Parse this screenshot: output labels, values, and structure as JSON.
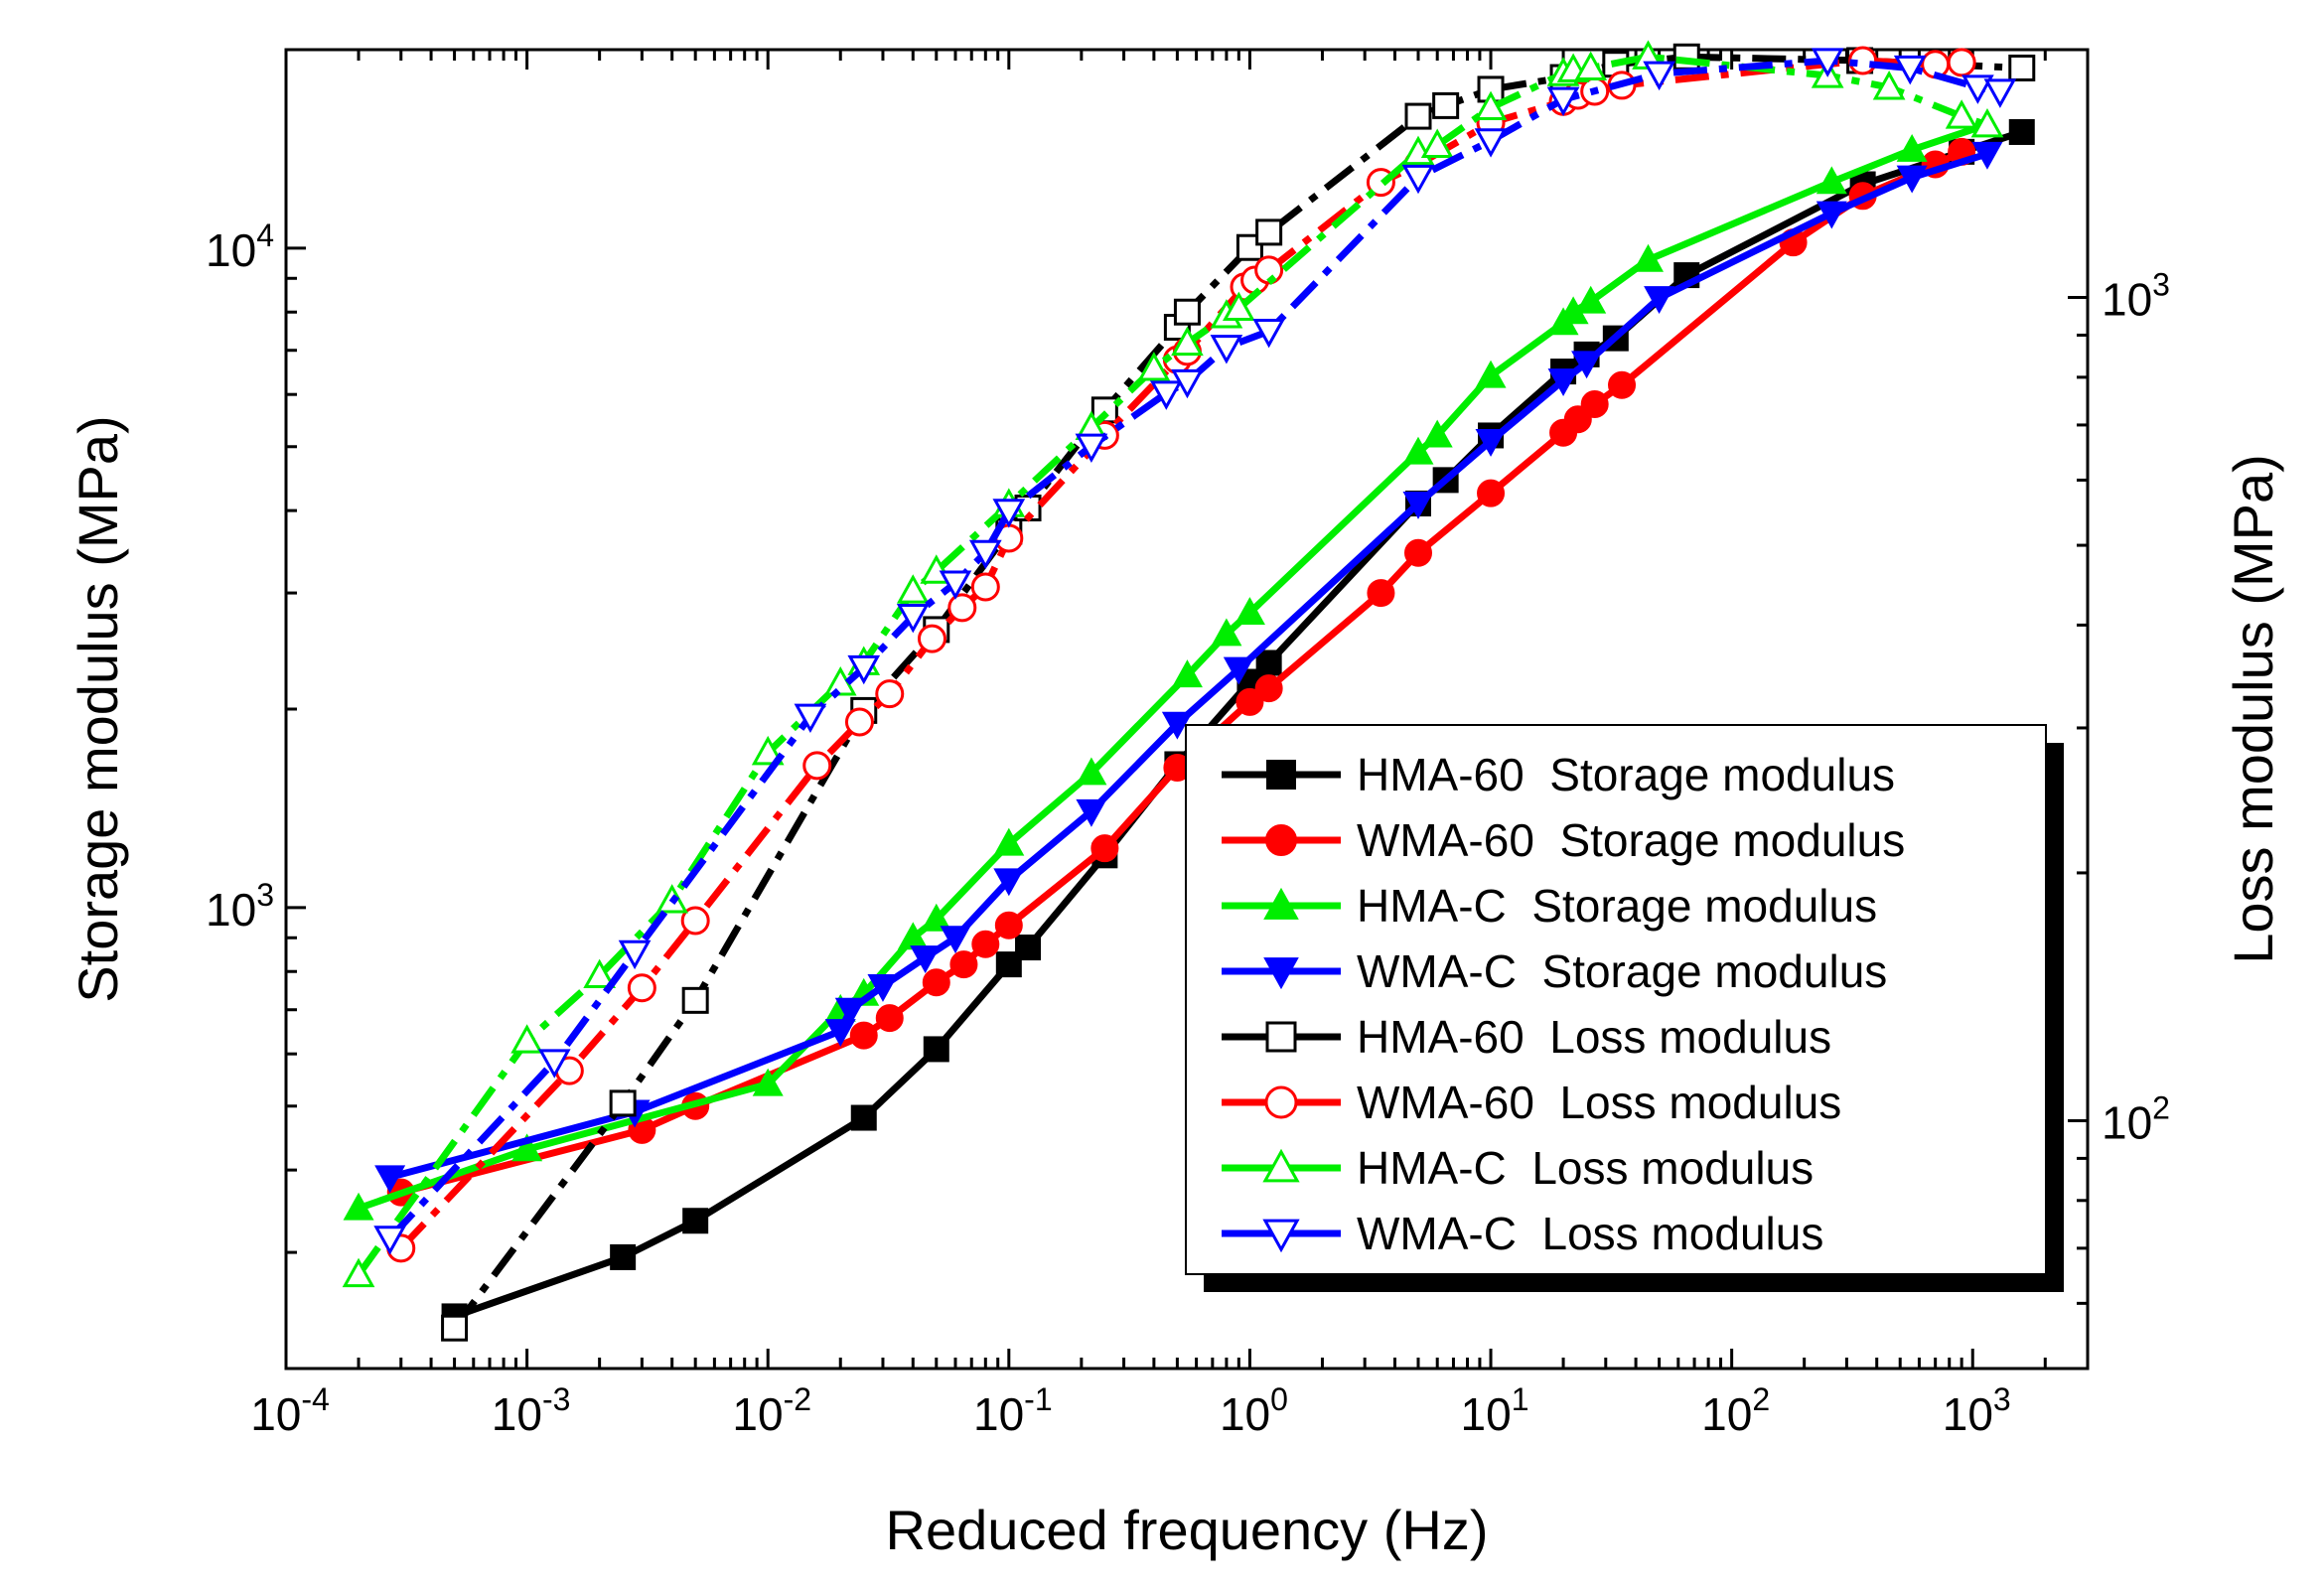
{
  "chart_data": {
    "type": "line",
    "x_scale": "log",
    "y_scale": "log",
    "xlabel": "Reduced frequency (Hz)",
    "ylabel": "Storage modulus (MPa)",
    "y2label": "Loss modulus (MPa)",
    "xlim": [
      0.0001,
      3000
    ],
    "ylim": [
      200,
      20000
    ],
    "y2lim": [
      50,
      2000
    ],
    "x_ticks": [
      {
        "value": 0.0001,
        "base": "10",
        "exp": "-4"
      },
      {
        "value": 0.001,
        "base": "10",
        "exp": "-3"
      },
      {
        "value": 0.01,
        "base": "10",
        "exp": "-2"
      },
      {
        "value": 0.1,
        "base": "10",
        "exp": "-1"
      },
      {
        "value": 1,
        "base": "10",
        "exp": "0"
      },
      {
        "value": 10,
        "base": "10",
        "exp": "1"
      },
      {
        "value": 100,
        "base": "10",
        "exp": "2"
      },
      {
        "value": 1000,
        "base": "10",
        "exp": "3"
      }
    ],
    "y_ticks": [
      {
        "value": 1000,
        "base": "10",
        "exp": "3"
      },
      {
        "value": 10000,
        "base": "10",
        "exp": "4"
      }
    ],
    "y2_ticks": [
      {
        "value": 100,
        "base": "10",
        "exp": "2"
      },
      {
        "value": 1000,
        "base": "10",
        "exp": "3"
      }
    ],
    "legend_position": "bottom-right",
    "series": [
      {
        "name": "HMA-60  Storage modulus",
        "axis": "left",
        "color": "#000000",
        "marker": "square",
        "filled": true,
        "dash": "solid",
        "points": [
          [
            0.0005,
            240
          ],
          [
            0.0025,
            295
          ],
          [
            0.005,
            335
          ],
          [
            0.025,
            480
          ],
          [
            0.05,
            610
          ],
          [
            0.1,
            820
          ],
          [
            0.12,
            870
          ],
          [
            0.25,
            1200
          ],
          [
            0.5,
            1650
          ],
          [
            1.0,
            2200
          ],
          [
            1.2,
            2350
          ],
          [
            5,
            4100
          ],
          [
            6.5,
            4450
          ],
          [
            10,
            5200
          ],
          [
            20,
            6500
          ],
          [
            25,
            6900
          ],
          [
            33,
            7300
          ],
          [
            65,
            9100
          ],
          [
            350,
            12500
          ],
          [
            900,
            14000
          ],
          [
            1600,
            15000
          ]
        ]
      },
      {
        "name": "WMA-60  Storage modulus",
        "axis": "left",
        "color": "#ff0000",
        "marker": "circle",
        "filled": true,
        "dash": "solid",
        "points": [
          [
            0.0003,
            370
          ],
          [
            0.003,
            460
          ],
          [
            0.005,
            500
          ],
          [
            0.025,
            640
          ],
          [
            0.032,
            680
          ],
          [
            0.05,
            770
          ],
          [
            0.065,
            820
          ],
          [
            0.08,
            880
          ],
          [
            0.1,
            940
          ],
          [
            0.25,
            1230
          ],
          [
            0.5,
            1630
          ],
          [
            1.0,
            2050
          ],
          [
            1.2,
            2150
          ],
          [
            3.5,
            3000
          ],
          [
            5,
            3450
          ],
          [
            10,
            4250
          ],
          [
            20,
            5250
          ],
          [
            23,
            5500
          ],
          [
            27,
            5800
          ],
          [
            35,
            6200
          ],
          [
            180,
            10200
          ],
          [
            350,
            12000
          ],
          [
            700,
            13400
          ],
          [
            900,
            14000
          ]
        ]
      },
      {
        "name": "HMA-C  Storage modulus",
        "axis": "left",
        "color": "#00ee00",
        "marker": "triangle-up",
        "filled": true,
        "dash": "solid",
        "points": [
          [
            0.0002,
            350
          ],
          [
            0.001,
            430
          ],
          [
            0.01,
            540
          ],
          [
            0.02,
            700
          ],
          [
            0.025,
            740
          ],
          [
            0.04,
            900
          ],
          [
            0.05,
            960
          ],
          [
            0.1,
            1250
          ],
          [
            0.22,
            1600
          ],
          [
            0.55,
            2250
          ],
          [
            0.8,
            2600
          ],
          [
            1.0,
            2800
          ],
          [
            5,
            4900
          ],
          [
            6,
            5200
          ],
          [
            10,
            6400
          ],
          [
            20,
            7700
          ],
          [
            22,
            8000
          ],
          [
            26,
            8300
          ],
          [
            45,
            9600
          ],
          [
            260,
            12600
          ],
          [
            560,
            14100
          ],
          [
            1150,
            15400
          ]
        ]
      },
      {
        "name": "WMA-C  Storage modulus",
        "axis": "left",
        "color": "#0000ff",
        "marker": "triangle-down",
        "filled": true,
        "dash": "solid",
        "points": [
          [
            0.00027,
            390
          ],
          [
            0.0028,
            490
          ],
          [
            0.02,
            650
          ],
          [
            0.022,
            700
          ],
          [
            0.03,
            760
          ],
          [
            0.045,
            840
          ],
          [
            0.06,
            900
          ],
          [
            0.1,
            1100
          ],
          [
            0.22,
            1400
          ],
          [
            0.5,
            1900
          ],
          [
            0.9,
            2300
          ],
          [
            5,
            4100
          ],
          [
            10,
            5100
          ],
          [
            20,
            6300
          ],
          [
            25,
            6700
          ],
          [
            50,
            8400
          ],
          [
            260,
            11300
          ],
          [
            560,
            12800
          ],
          [
            1150,
            13900
          ]
        ]
      },
      {
        "name": "HMA-60  Loss modulus",
        "axis": "right",
        "color": "#000000",
        "marker": "square",
        "filled": false,
        "dash": "dashdot",
        "points": [
          [
            0.0005,
            56
          ],
          [
            0.0025,
            105
          ],
          [
            0.005,
            140
          ],
          [
            0.025,
            315
          ],
          [
            0.05,
            395
          ],
          [
            0.1,
            520
          ],
          [
            0.12,
            555
          ],
          [
            0.25,
            730
          ],
          [
            0.5,
            920
          ],
          [
            0.55,
            960
          ],
          [
            1.0,
            1150
          ],
          [
            1.2,
            1200
          ],
          [
            5,
            1660
          ],
          [
            6.5,
            1710
          ],
          [
            10,
            1790
          ],
          [
            20,
            1850
          ],
          [
            33,
            1920
          ],
          [
            65,
            1960
          ],
          [
            340,
            1940
          ],
          [
            1600,
            1900
          ]
        ]
      },
      {
        "name": "WMA-60  Loss modulus",
        "axis": "right",
        "color": "#ff0000",
        "marker": "circle",
        "filled": false,
        "dash": "dashdot",
        "points": [
          [
            0.0003,
            70
          ],
          [
            0.0015,
            115
          ],
          [
            0.003,
            145
          ],
          [
            0.005,
            175
          ],
          [
            0.016,
            270
          ],
          [
            0.024,
            305
          ],
          [
            0.032,
            330
          ],
          [
            0.048,
            385
          ],
          [
            0.064,
            420
          ],
          [
            0.08,
            445
          ],
          [
            0.1,
            510
          ],
          [
            0.25,
            680
          ],
          [
            0.5,
            840
          ],
          [
            0.55,
            860
          ],
          [
            0.95,
            1030
          ],
          [
            1.05,
            1050
          ],
          [
            1.2,
            1080
          ],
          [
            3.5,
            1380
          ],
          [
            5,
            1450
          ],
          [
            10,
            1630
          ],
          [
            20,
            1730
          ],
          [
            23,
            1760
          ],
          [
            27,
            1780
          ],
          [
            35,
            1810
          ],
          [
            350,
            1940
          ],
          [
            700,
            1920
          ],
          [
            900,
            1930
          ]
        ]
      },
      {
        "name": "HMA-C  Loss modulus",
        "axis": "right",
        "color": "#00ee00",
        "marker": "triangle-up",
        "filled": false,
        "dash": "dashdot",
        "points": [
          [
            0.0002,
            65
          ],
          [
            0.001,
            125
          ],
          [
            0.002,
            150
          ],
          [
            0.004,
            185
          ],
          [
            0.01,
            280
          ],
          [
            0.02,
            340
          ],
          [
            0.025,
            360
          ],
          [
            0.04,
            440
          ],
          [
            0.05,
            465
          ],
          [
            0.1,
            560
          ],
          [
            0.22,
            695
          ],
          [
            0.4,
            820
          ],
          [
            0.55,
            880
          ],
          [
            0.8,
            950
          ],
          [
            0.9,
            970
          ],
          [
            5,
            1500
          ],
          [
            6,
            1530
          ],
          [
            10,
            1700
          ],
          [
            20,
            1870
          ],
          [
            22,
            1890
          ],
          [
            26,
            1900
          ],
          [
            45,
            1960
          ],
          [
            250,
            1860
          ],
          [
            450,
            1800
          ],
          [
            900,
            1660
          ],
          [
            1150,
            1620
          ]
        ]
      },
      {
        "name": "WMA-C  Loss modulus",
        "axis": "right",
        "color": "#0000ff",
        "marker": "triangle-down",
        "filled": false,
        "dash": "dashdot",
        "points": [
          [
            0.00027,
            72
          ],
          [
            0.0013,
            118
          ],
          [
            0.0028,
            160
          ],
          [
            0.015,
            310
          ],
          [
            0.025,
            355
          ],
          [
            0.04,
            410
          ],
          [
            0.06,
            450
          ],
          [
            0.08,
            490
          ],
          [
            0.1,
            550
          ],
          [
            0.22,
            660
          ],
          [
            0.45,
            765
          ],
          [
            0.55,
            790
          ],
          [
            0.8,
            870
          ],
          [
            1.2,
            910
          ],
          [
            5,
            1400
          ],
          [
            10,
            1550
          ],
          [
            20,
            1740
          ],
          [
            50,
            1870
          ],
          [
            250,
            1940
          ],
          [
            550,
            1900
          ],
          [
            1050,
            1800
          ],
          [
            1300,
            1780
          ]
        ]
      }
    ]
  }
}
